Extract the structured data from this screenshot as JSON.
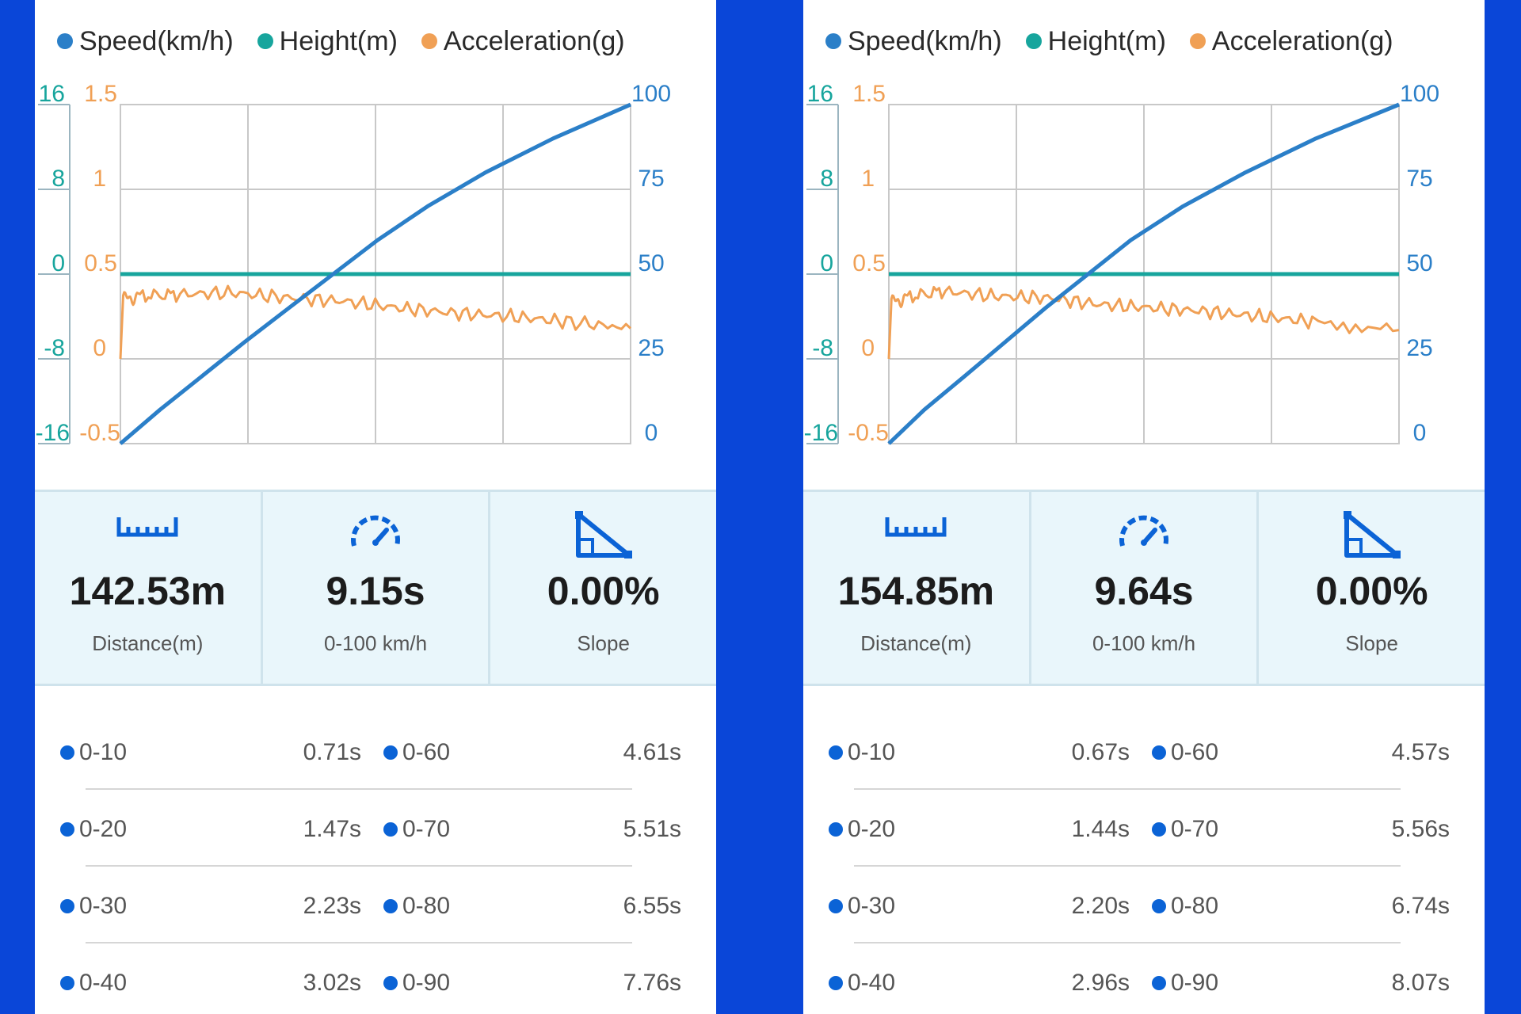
{
  "colors": {
    "background": "#0a46d8",
    "speed": "#2b7fc8",
    "height": "#17a59d",
    "acceleration": "#f0a055",
    "accent": "#0b63d6"
  },
  "icons": {
    "distance": "ruler-icon",
    "time": "speedometer-icon",
    "slope": "slope-icon"
  },
  "panels": [
    {
      "legend": [
        {
          "label": "Speed(km/h)",
          "color": "#2b7fc8"
        },
        {
          "label": "Height(m)",
          "color": "#17a59d"
        },
        {
          "label": "Acceleration(g)",
          "color": "#f0a055"
        }
      ],
      "axes": {
        "height_ticks": [
          "16",
          "8",
          "0",
          "-8",
          "-16"
        ],
        "accel_ticks": [
          "1.5",
          "1",
          "0.5",
          "0",
          "-0.5"
        ],
        "speed_ticks": [
          "100",
          "75",
          "50",
          "25",
          "0"
        ]
      },
      "stats": {
        "distance": {
          "value": "142.53m",
          "label": "Distance(m)"
        },
        "time": {
          "value": "9.15s",
          "label": "0-100 km/h"
        },
        "slope": {
          "value": "0.00%",
          "label": "Slope"
        }
      },
      "splits": [
        {
          "l_label": "0-10",
          "l_time": "0.71s",
          "r_label": "0-60",
          "r_time": "4.61s"
        },
        {
          "l_label": "0-20",
          "l_time": "1.47s",
          "r_label": "0-70",
          "r_time": "5.51s"
        },
        {
          "l_label": "0-30",
          "l_time": "2.23s",
          "r_label": "0-80",
          "r_time": "6.55s"
        },
        {
          "l_label": "0-40",
          "l_time": "3.02s",
          "r_label": "0-90",
          "r_time": "7.76s"
        }
      ]
    },
    {
      "legend": [
        {
          "label": "Speed(km/h)",
          "color": "#2b7fc8"
        },
        {
          "label": "Height(m)",
          "color": "#17a59d"
        },
        {
          "label": "Acceleration(g)",
          "color": "#f0a055"
        }
      ],
      "axes": {
        "height_ticks": [
          "16",
          "8",
          "0",
          "-8",
          "-16"
        ],
        "accel_ticks": [
          "1.5",
          "1",
          "0.5",
          "0",
          "-0.5"
        ],
        "speed_ticks": [
          "100",
          "75",
          "50",
          "25",
          "0"
        ]
      },
      "stats": {
        "distance": {
          "value": "154.85m",
          "label": "Distance(m)"
        },
        "time": {
          "value": "9.64s",
          "label": "0-100 km/h"
        },
        "slope": {
          "value": "0.00%",
          "label": "Slope"
        }
      },
      "splits": [
        {
          "l_label": "0-10",
          "l_time": "0.67s",
          "r_label": "0-60",
          "r_time": "4.57s"
        },
        {
          "l_label": "0-20",
          "l_time": "1.44s",
          "r_label": "0-70",
          "r_time": "5.56s"
        },
        {
          "l_label": "0-30",
          "l_time": "2.20s",
          "r_label": "0-80",
          "r_time": "6.74s"
        },
        {
          "l_label": "0-40",
          "l_time": "2.96s",
          "r_label": "0-90",
          "r_time": "8.07s"
        }
      ]
    }
  ],
  "chart_data": [
    {
      "type": "line",
      "series": [
        {
          "name": "Speed(km/h)",
          "axis": "right",
          "x": [
            0,
            0.71,
            1.47,
            2.23,
            3.02,
            4.61,
            5.51,
            6.55,
            7.76,
            9.15
          ],
          "y": [
            0,
            10,
            20,
            30,
            40,
            60,
            70,
            80,
            90,
            100
          ]
        },
        {
          "name": "Height(m)",
          "axis": "left-outer",
          "x": [
            0,
            9.15
          ],
          "y": [
            0,
            0
          ]
        },
        {
          "name": "Acceleration(g)",
          "axis": "left-inner",
          "x": [
            0,
            0.05,
            0.3,
            1.0,
            2.0,
            3.0,
            4.0,
            5.0,
            6.0,
            7.0,
            8.0,
            9.15
          ],
          "y": [
            0,
            0.35,
            0.37,
            0.38,
            0.39,
            0.36,
            0.34,
            0.3,
            0.27,
            0.25,
            0.22,
            0.18
          ]
        }
      ],
      "axes": {
        "height_range": [
          -16,
          16
        ],
        "accel_range": [
          -0.5,
          1.5
        ],
        "speed_range": [
          0,
          100
        ]
      },
      "grid": true,
      "legend_position": "top"
    },
    {
      "type": "line",
      "series": [
        {
          "name": "Speed(km/h)",
          "axis": "right",
          "x": [
            0,
            0.67,
            1.44,
            2.2,
            2.96,
            4.57,
            5.56,
            6.74,
            8.07,
            9.64
          ],
          "y": [
            0,
            10,
            20,
            30,
            40,
            60,
            70,
            80,
            90,
            100
          ]
        },
        {
          "name": "Height(m)",
          "axis": "left-outer",
          "x": [
            0,
            9.64
          ],
          "y": [
            0,
            0
          ]
        },
        {
          "name": "Acceleration(g)",
          "axis": "left-inner",
          "x": [
            0,
            0.05,
            0.3,
            1.0,
            2.0,
            3.0,
            4.0,
            5.0,
            6.0,
            7.0,
            8.0,
            9.64
          ],
          "y": [
            0,
            0.33,
            0.36,
            0.4,
            0.37,
            0.36,
            0.32,
            0.3,
            0.28,
            0.25,
            0.22,
            0.17
          ]
        }
      ],
      "axes": {
        "height_range": [
          -16,
          16
        ],
        "accel_range": [
          -0.5,
          1.5
        ],
        "speed_range": [
          0,
          100
        ]
      },
      "grid": true,
      "legend_position": "top"
    }
  ]
}
